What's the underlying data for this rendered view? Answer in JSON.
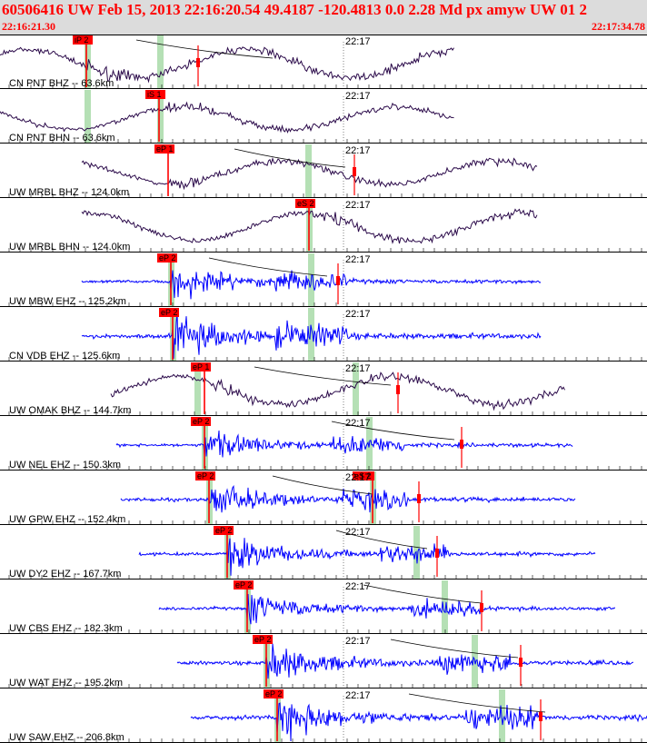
{
  "header": {
    "title": "60506416 UW Feb 15, 2013 22:16:20.54    49.4187 -120.4813  0.0 2.28 Md px amyw UW 01   2",
    "start_time": "22:16:21.30",
    "end_time": "22:17:34.78"
  },
  "colors": {
    "header_bg": "#dcdcdc",
    "header_text": "#ff0000",
    "trace_bh": "#2b0a4a",
    "trace_eh": "#0000ff",
    "pick": "#ff0000",
    "window": "#b5e0b5"
  },
  "time_mark": "22:17",
  "panels": [
    {
      "label": "CN PNT BHZ -- 63.6km",
      "pick": "iP 2",
      "kind": "bh"
    },
    {
      "label": "CN PNT BHN -- 63.6km",
      "pick": "iS 1",
      "kind": "bh"
    },
    {
      "label": "UW MRBL BHZ -- 124.0km",
      "pick": "eP 1",
      "kind": "bh"
    },
    {
      "label": "UW MRBL BHN -- 124.0km",
      "pick": "eS 2",
      "kind": "bh"
    },
    {
      "label": "UW MBW EHZ -- 125.2km",
      "pick": "eP 2",
      "kind": "eh"
    },
    {
      "label": "CN VDB EHZ -- 125.6km",
      "pick": "eP 2",
      "kind": "eh"
    },
    {
      "label": "UW OMAK BHZ -- 144.7km",
      "pick": "eP 1",
      "kind": "bh"
    },
    {
      "label": "UW NEL EHZ -- 150.3km",
      "pick": "eP 2",
      "kind": "eh"
    },
    {
      "label": "UW GPW EHZ -- 152.4km",
      "pick": "eP 2",
      "pick2": "eS 2",
      "kind": "eh"
    },
    {
      "label": "UW DY2 EHZ -- 167.7km",
      "pick": "eP 2",
      "kind": "eh"
    },
    {
      "label": "UW CBS EHZ -- 182.3km",
      "pick": "eP 2",
      "kind": "eh"
    },
    {
      "label": "UW WAT EHZ -- 195.2km",
      "pick": "eP 2",
      "kind": "eh"
    },
    {
      "label": "UW SAW EHZ -- 206.8km",
      "pick": "eP 2",
      "kind": "eh"
    }
  ]
}
